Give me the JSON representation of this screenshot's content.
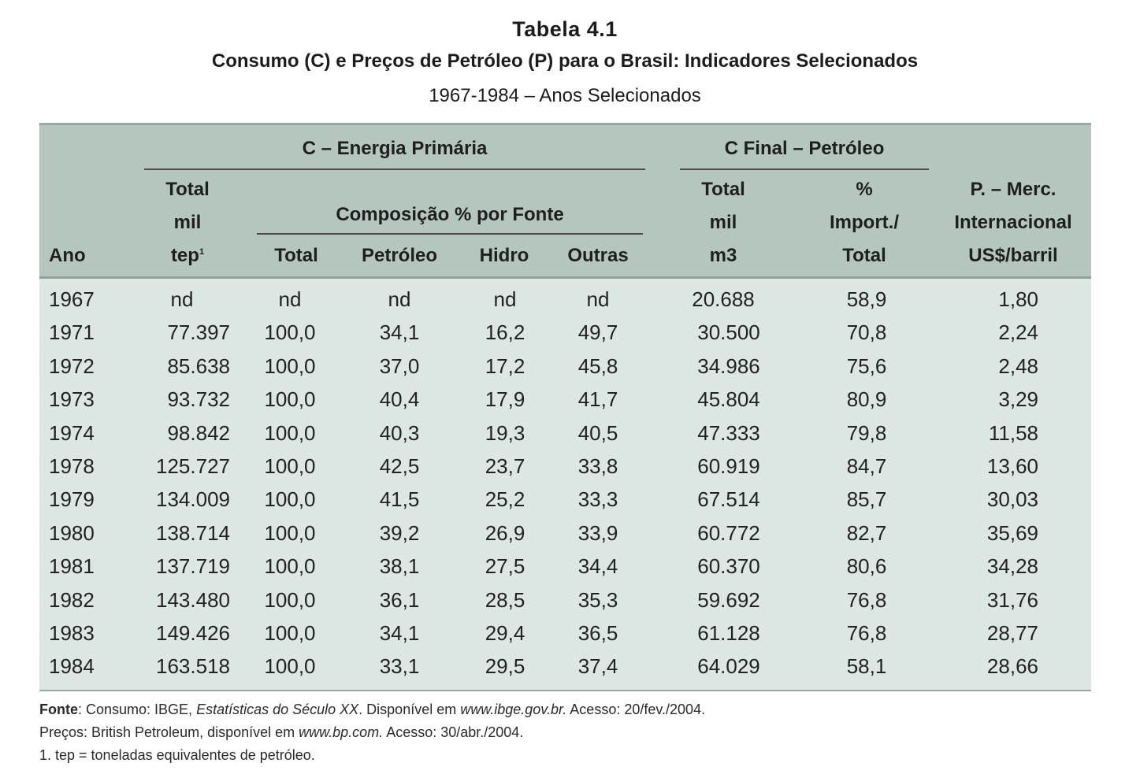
{
  "title": "Tabela 4.1",
  "subtitle": "Consumo (C) e Preços de Petróleo (P) para o Brasil: Indicadores Selecionados",
  "period": "1967-1984 – Anos Selecionados",
  "header": {
    "group_energia": "C – Energia Primária",
    "group_final": "C Final – Petróleo",
    "composicao": "Composição % por Fonte",
    "ano": "Ano",
    "total_line1": "Total",
    "total_line2": "mil",
    "total_line3": "tep",
    "total_sup": "1",
    "comp_total": "Total",
    "comp_petroleo": "Petróleo",
    "comp_hidro": "Hidro",
    "comp_outras": "Outras",
    "final_total_line1": "Total",
    "final_total_line2": "mil",
    "final_total_line3": "m3",
    "import_line1": "%",
    "import_line2": "Import./",
    "import_line3": "Total",
    "price_line1": "P. – Merc.",
    "price_line2": "Internacional",
    "price_line3": "US$/barril"
  },
  "rows": [
    {
      "ano": "1967",
      "total_tep": "nd",
      "comp_total": "nd",
      "petroleo": "nd",
      "hidro": "nd",
      "outras": "nd",
      "final_total": "20.688",
      "import_pct": "58,9",
      "price": "1,80"
    },
    {
      "ano": "1971",
      "total_tep": "77.397",
      "comp_total": "100,0",
      "petroleo": "34,1",
      "hidro": "16,2",
      "outras": "49,7",
      "final_total": "30.500",
      "import_pct": "70,8",
      "price": "2,24"
    },
    {
      "ano": "1972",
      "total_tep": "85.638",
      "comp_total": "100,0",
      "petroleo": "37,0",
      "hidro": "17,2",
      "outras": "45,8",
      "final_total": "34.986",
      "import_pct": "75,6",
      "price": "2,48"
    },
    {
      "ano": "1973",
      "total_tep": "93.732",
      "comp_total": "100,0",
      "petroleo": "40,4",
      "hidro": "17,9",
      "outras": "41,7",
      "final_total": "45.804",
      "import_pct": "80,9",
      "price": "3,29"
    },
    {
      "ano": "1974",
      "total_tep": "98.842",
      "comp_total": "100,0",
      "petroleo": "40,3",
      "hidro": "19,3",
      "outras": "40,5",
      "final_total": "47.333",
      "import_pct": "79,8",
      "price": "11,58"
    },
    {
      "ano": "1978",
      "total_tep": "125.727",
      "comp_total": "100,0",
      "petroleo": "42,5",
      "hidro": "23,7",
      "outras": "33,8",
      "final_total": "60.919",
      "import_pct": "84,7",
      "price": "13,60"
    },
    {
      "ano": "1979",
      "total_tep": "134.009",
      "comp_total": "100,0",
      "petroleo": "41,5",
      "hidro": "25,2",
      "outras": "33,3",
      "final_total": "67.514",
      "import_pct": "85,7",
      "price": "30,03"
    },
    {
      "ano": "1980",
      "total_tep": "138.714",
      "comp_total": "100,0",
      "petroleo": "39,2",
      "hidro": "26,9",
      "outras": "33,9",
      "final_total": "60.772",
      "import_pct": "82,7",
      "price": "35,69"
    },
    {
      "ano": "1981",
      "total_tep": "137.719",
      "comp_total": "100,0",
      "petroleo": "38,1",
      "hidro": "27,5",
      "outras": "34,4",
      "final_total": "60.370",
      "import_pct": "80,6",
      "price": "34,28"
    },
    {
      "ano": "1982",
      "total_tep": "143.480",
      "comp_total": "100,0",
      "petroleo": "36,1",
      "hidro": "28,5",
      "outras": "35,3",
      "final_total": "59.692",
      "import_pct": "76,8",
      "price": "31,76"
    },
    {
      "ano": "1983",
      "total_tep": "149.426",
      "comp_total": "100,0",
      "petroleo": "34,1",
      "hidro": "29,4",
      "outras": "36,5",
      "final_total": "61.128",
      "import_pct": "76,8",
      "price": "28,77"
    },
    {
      "ano": "1984",
      "total_tep": "163.518",
      "comp_total": "100,0",
      "petroleo": "33,1",
      "hidro": "29,5",
      "outras": "37,4",
      "final_total": "64.029",
      "import_pct": "58,1",
      "price": "28,66"
    }
  ],
  "footer": {
    "fonte_label": "Fonte",
    "fonte_text1": ": Consumo: IBGE, ",
    "fonte_italic1": "Estatísticas do Século XX",
    "fonte_text2": ". Disponível em ",
    "fonte_italic2": "www.ibge.gov.br.",
    "fonte_text3": " Acesso: 20/fev./2004.",
    "precos_text1": "Preços: British Petroleum, disponível em ",
    "precos_italic": "www.bp.com.",
    "precos_text2": " Acesso: 30/abr./2004.",
    "note": "1. tep = toneladas equivalentes de petróleo."
  },
  "colors": {
    "header_band": "#b5c6bf",
    "body_band": "#dce6e2"
  }
}
